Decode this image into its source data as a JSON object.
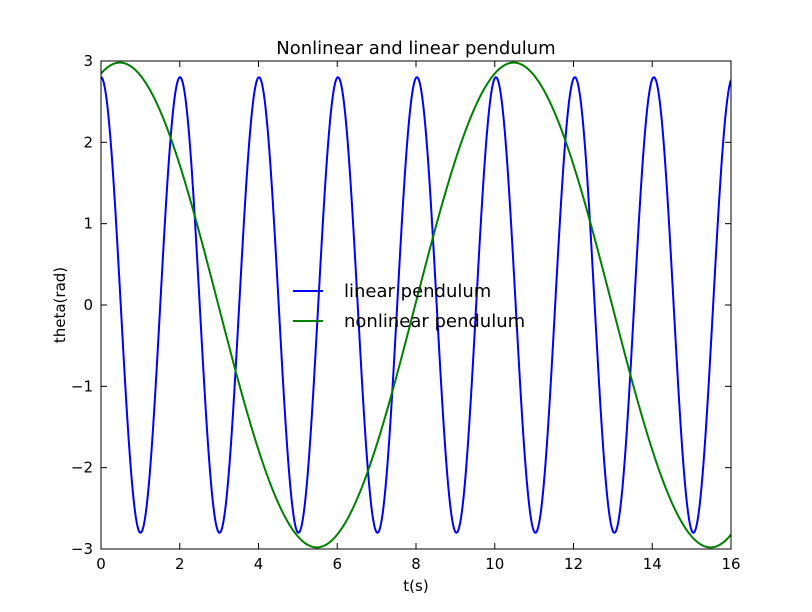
{
  "chart_data": {
    "type": "line",
    "title": "Nonlinear and linear pendulum",
    "xlabel": "t(s)",
    "ylabel": "theta(rad)",
    "xlim": [
      0,
      16
    ],
    "ylim": [
      -3,
      3
    ],
    "xticks": [
      0,
      2,
      4,
      6,
      8,
      10,
      12,
      14,
      16
    ],
    "yticks": [
      -3,
      -2,
      -1,
      0,
      1,
      2,
      3
    ],
    "ytick_labels": [
      "−3",
      "−2",
      "−1",
      "0",
      "1",
      "2",
      "3"
    ],
    "grid": false,
    "legend": "center",
    "series": [
      {
        "name": "linear pendulum",
        "color": "#0000ff",
        "amplitude": 2.8,
        "period": 2.006,
        "phase": 0
      },
      {
        "name": "nonlinear pendulum",
        "color": "#008000",
        "amplitude": 2.98,
        "period": 10.0,
        "phase": 0.48
      }
    ]
  }
}
